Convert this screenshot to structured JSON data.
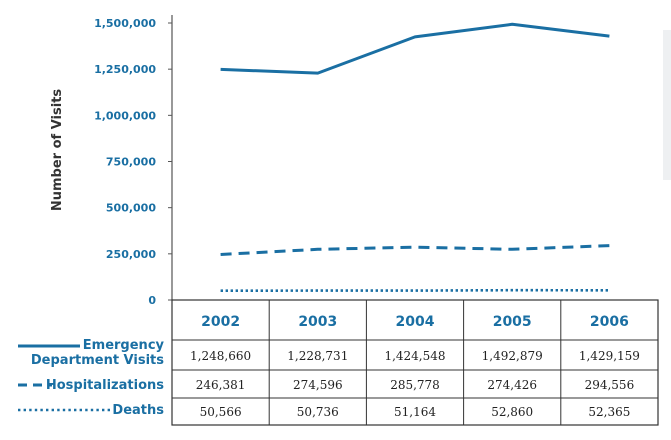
{
  "chart_data": {
    "type": "line",
    "title": "",
    "xlabel": "",
    "ylabel": "Number of Visits",
    "ylim": [
      0,
      1500000
    ],
    "yticks": [
      0,
      250000,
      500000,
      750000,
      1000000,
      1250000,
      1500000
    ],
    "ytick_labels": [
      "0",
      "250,000",
      "500,000",
      "750,000",
      "1,000,000",
      "1,250,000",
      "1,500,000"
    ],
    "categories": [
      "2002",
      "2003",
      "2004",
      "2005",
      "2006"
    ],
    "series": [
      {
        "name": "Emergency Department Visits",
        "legend_lines": [
          "Emergency",
          "Department Visits"
        ],
        "style": "solid",
        "values": [
          1248660,
          1228731,
          1424548,
          1492879,
          1429159
        ],
        "labels": [
          "1,248,660",
          "1,228,731",
          "1,424,548",
          "1,492,879",
          "1,429,159"
        ]
      },
      {
        "name": "Hospitalizations",
        "legend_lines": [
          "Hospitalizations"
        ],
        "style": "dashed",
        "values": [
          246381,
          274596,
          285778,
          274426,
          294556
        ],
        "labels": [
          "246,381",
          "274,596",
          "285,778",
          "274,426",
          "294,556"
        ]
      },
      {
        "name": "Deaths",
        "legend_lines": [
          "Deaths"
        ],
        "style": "dotted",
        "values": [
          50566,
          50736,
          51164,
          52860,
          52365
        ],
        "labels": [
          "50,566",
          "50,736",
          "51,164",
          "52,860",
          "52,365"
        ]
      }
    ],
    "grid": false,
    "legend": "left-of-table",
    "colors": {
      "line": "#1a6fa3",
      "text": "#1a6fa3",
      "table_text": "#222222",
      "border": "#333333"
    }
  }
}
